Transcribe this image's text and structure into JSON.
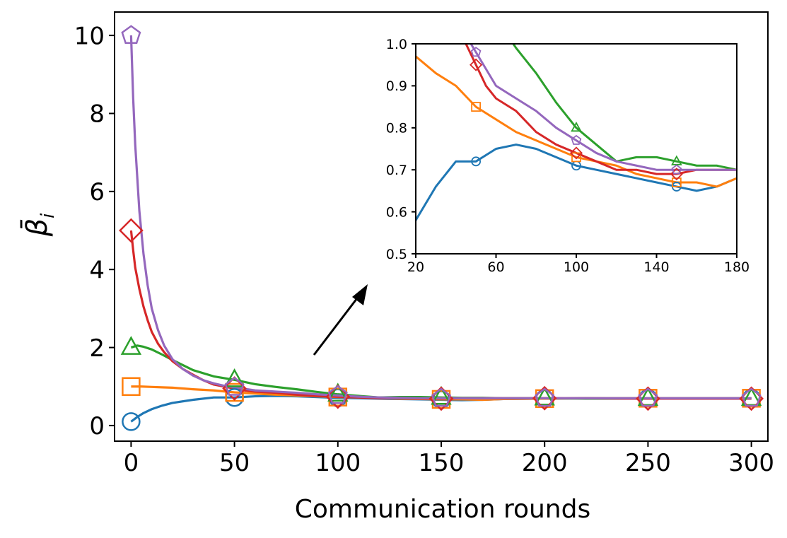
{
  "chart_data": {
    "type": "line",
    "xlabel": "Communication rounds",
    "ylabel": "β̄",
    "ylabel_sub": "i",
    "xlim": [
      -8,
      308
    ],
    "ylim": [
      -0.4,
      10.6
    ],
    "xticks": [
      0,
      50,
      100,
      150,
      200,
      250,
      300
    ],
    "yticks": [
      0,
      2,
      4,
      6,
      8,
      10
    ],
    "grid": false,
    "legend": "none",
    "marker_every": [
      0,
      50,
      100,
      150,
      200,
      250,
      300
    ],
    "series": [
      {
        "color": "#1f77b4",
        "marker": "circle",
        "x": [
          0,
          3,
          6,
          10,
          15,
          20,
          30,
          40,
          50,
          60,
          70,
          80,
          90,
          100,
          110,
          120,
          130,
          140,
          150,
          160,
          170,
          180,
          200,
          220,
          240,
          260,
          280,
          300
        ],
        "y": [
          0.1,
          0.22,
          0.32,
          0.42,
          0.51,
          0.58,
          0.66,
          0.72,
          0.72,
          0.75,
          0.76,
          0.75,
          0.73,
          0.71,
          0.7,
          0.69,
          0.68,
          0.67,
          0.66,
          0.65,
          0.66,
          0.68,
          0.69,
          0.7,
          0.7,
          0.7,
          0.7,
          0.7
        ]
      },
      {
        "color": "#ff7f0e",
        "marker": "square",
        "x": [
          0,
          5,
          10,
          15,
          20,
          30,
          40,
          50,
          60,
          70,
          80,
          90,
          100,
          110,
          120,
          130,
          140,
          150,
          160,
          170,
          180,
          200,
          220,
          240,
          260,
          280,
          300
        ],
        "y": [
          1.0,
          1.0,
          0.99,
          0.98,
          0.97,
          0.93,
          0.9,
          0.85,
          0.82,
          0.79,
          0.77,
          0.75,
          0.73,
          0.72,
          0.71,
          0.69,
          0.68,
          0.67,
          0.67,
          0.66,
          0.68,
          0.69,
          0.7,
          0.7,
          0.7,
          0.7,
          0.7
        ]
      },
      {
        "color": "#2ca02c",
        "marker": "triangle",
        "x": [
          0,
          3,
          6,
          10,
          15,
          20,
          30,
          40,
          50,
          60,
          70,
          80,
          90,
          100,
          110,
          120,
          130,
          140,
          150,
          160,
          170,
          180,
          200,
          220,
          240,
          260,
          280,
          300
        ],
        "y": [
          2.0,
          2.05,
          2.02,
          1.95,
          1.82,
          1.68,
          1.42,
          1.26,
          1.17,
          1.06,
          0.99,
          0.93,
          0.86,
          0.8,
          0.76,
          0.72,
          0.73,
          0.73,
          0.72,
          0.71,
          0.71,
          0.7,
          0.7,
          0.69,
          0.69,
          0.69,
          0.69,
          0.69
        ]
      },
      {
        "color": "#d62728",
        "marker": "diamond",
        "x": [
          0,
          1,
          2,
          4,
          6,
          8,
          10,
          13,
          16,
          20,
          25,
          30,
          35,
          40,
          45,
          50,
          55,
          60,
          70,
          80,
          90,
          100,
          110,
          120,
          130,
          140,
          150,
          160,
          170,
          180,
          200,
          220,
          240,
          260,
          280,
          300
        ],
        "y": [
          5.0,
          4.5,
          4.05,
          3.5,
          3.05,
          2.7,
          2.4,
          2.1,
          1.88,
          1.65,
          1.45,
          1.3,
          1.16,
          1.05,
          1.0,
          0.95,
          0.9,
          0.87,
          0.84,
          0.79,
          0.76,
          0.74,
          0.72,
          0.7,
          0.7,
          0.69,
          0.69,
          0.7,
          0.7,
          0.7,
          0.7,
          0.7,
          0.69,
          0.69,
          0.69,
          0.69
        ]
      },
      {
        "color": "#9467bd",
        "marker": "pentagon",
        "x": [
          0,
          1,
          2,
          4,
          6,
          8,
          10,
          13,
          16,
          20,
          25,
          30,
          35,
          40,
          45,
          50,
          55,
          60,
          70,
          80,
          90,
          100,
          110,
          120,
          130,
          140,
          150,
          160,
          170,
          180,
          200,
          220,
          240,
          260,
          280,
          300
        ],
        "y": [
          10.0,
          8.4,
          7.2,
          5.5,
          4.4,
          3.6,
          3.0,
          2.45,
          2.05,
          1.7,
          1.45,
          1.28,
          1.16,
          1.08,
          1.02,
          0.98,
          0.94,
          0.9,
          0.87,
          0.84,
          0.8,
          0.77,
          0.74,
          0.72,
          0.71,
          0.7,
          0.7,
          0.7,
          0.7,
          0.7,
          0.7,
          0.7,
          0.7,
          0.7,
          0.7,
          0.7
        ]
      }
    ],
    "inset": {
      "xlim": [
        20,
        180
      ],
      "ylim": [
        0.5,
        1.0
      ],
      "xticks": [
        20,
        60,
        100,
        140,
        180
      ],
      "yticks": [
        0.5,
        0.6,
        0.7,
        0.8,
        0.9,
        1.0
      ],
      "marker_every": [
        50,
        100,
        150
      ]
    }
  }
}
